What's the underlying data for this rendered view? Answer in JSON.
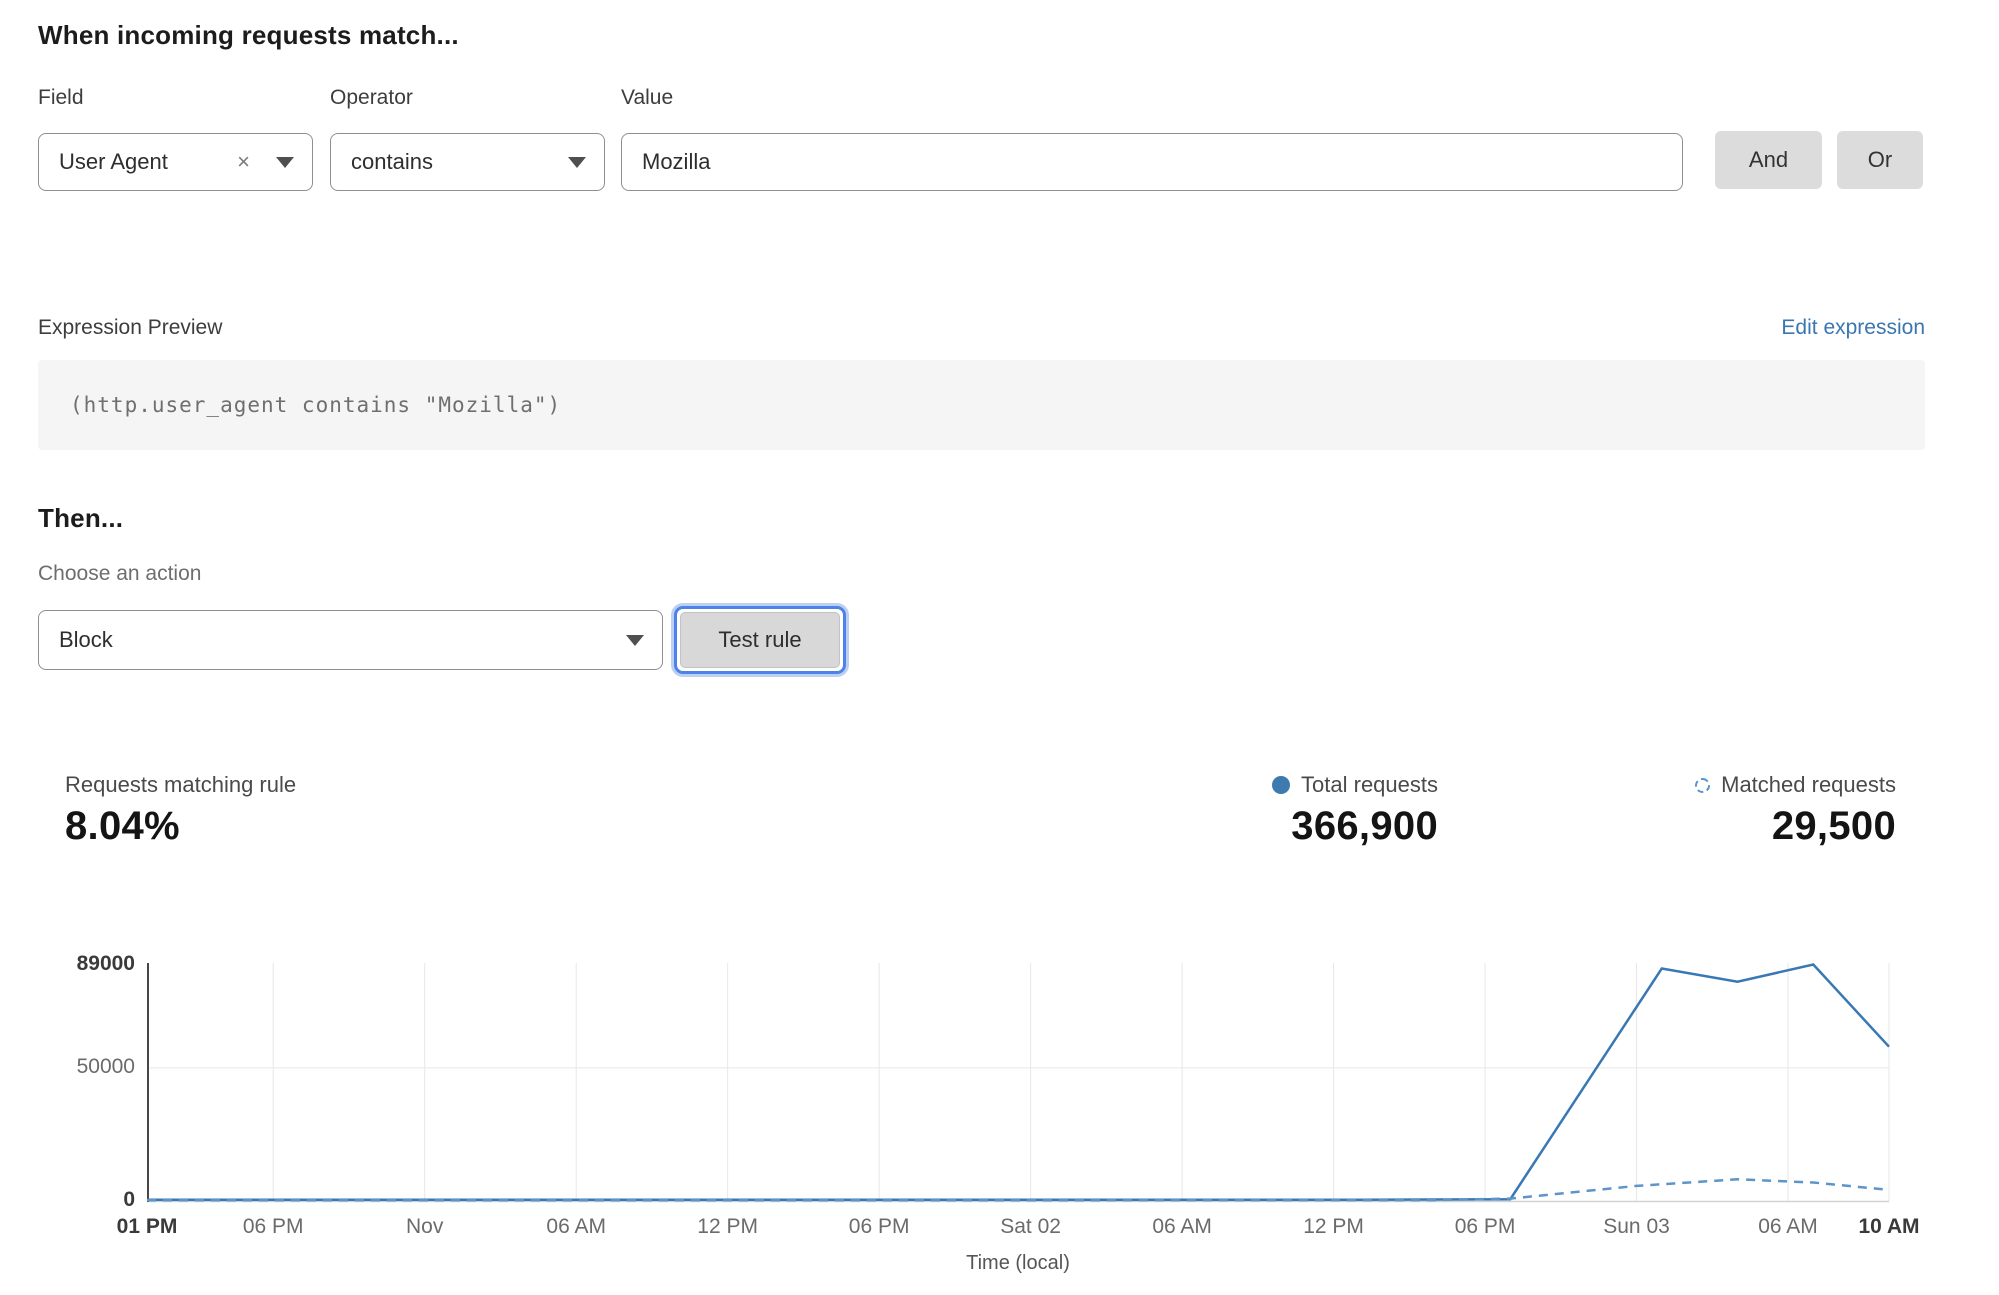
{
  "match_section": {
    "heading": "When incoming requests match...",
    "field": {
      "label": "Field",
      "value": "User Agent",
      "clear_icon": "×"
    },
    "operator": {
      "label": "Operator",
      "value": "contains"
    },
    "value_field": {
      "label": "Value",
      "value": "Mozilla"
    },
    "and_button": "And",
    "or_button": "Or"
  },
  "expression": {
    "label": "Expression Preview",
    "edit_link": "Edit expression",
    "code": "(http.user_agent contains \"Mozilla\")"
  },
  "action_section": {
    "heading": "Then...",
    "choose_label": "Choose an action",
    "action_value": "Block",
    "test_button": "Test rule"
  },
  "stats": {
    "matching": {
      "label": "Requests matching rule",
      "value": "8.04%"
    },
    "total": {
      "label": "Total requests",
      "value": "366,900",
      "marker": "solid-dot"
    },
    "matched": {
      "label": "Matched requests",
      "value": "29,500",
      "marker": "dashed-circle"
    }
  },
  "colors": {
    "line_solid": "#3878b4",
    "line_dashed": "#5e94c8",
    "link_blue": "#3a76b0",
    "focus_ring": "#4d82e8",
    "grid": "#e7e7e7",
    "y_axis": "#474747",
    "x_axis": "#d2d2d2"
  },
  "chart_data": {
    "type": "line",
    "title": "",
    "xlabel": "Time (local)",
    "ylabel": "",
    "ylim": [
      0,
      89000
    ],
    "x_unit": "hours from first tick (Thu 01 PM)",
    "x_range_hours": 69,
    "grid": true,
    "y_ticks": [
      {
        "value": 89000,
        "label": "89000",
        "bold": true
      },
      {
        "value": 50000,
        "label": "50000",
        "bold": false
      },
      {
        "value": 0,
        "label": "0",
        "bold": true
      }
    ],
    "x_ticks": [
      {
        "h": 0,
        "label": "01 PM",
        "bold": true
      },
      {
        "h": 5,
        "label": "06 PM",
        "bold": false
      },
      {
        "h": 11,
        "label": "Nov",
        "bold": false
      },
      {
        "h": 17,
        "label": "06 AM",
        "bold": false
      },
      {
        "h": 23,
        "label": "12 PM",
        "bold": false
      },
      {
        "h": 29,
        "label": "06 PM",
        "bold": false
      },
      {
        "h": 35,
        "label": "Sat 02",
        "bold": false
      },
      {
        "h": 41,
        "label": "06 AM",
        "bold": false
      },
      {
        "h": 47,
        "label": "12 PM",
        "bold": false
      },
      {
        "h": 53,
        "label": "06 PM",
        "bold": false
      },
      {
        "h": 59,
        "label": "Sun 03",
        "bold": false
      },
      {
        "h": 65,
        "label": "06 AM",
        "bold": false
      },
      {
        "h": 69,
        "label": "10 AM",
        "bold": true
      }
    ],
    "series": [
      {
        "name": "Total requests",
        "style": "solid",
        "points": [
          [
            0,
            300
          ],
          [
            12,
            300
          ],
          [
            24,
            300
          ],
          [
            36,
            300
          ],
          [
            48,
            300
          ],
          [
            54,
            500
          ],
          [
            60,
            87500
          ],
          [
            63,
            82500
          ],
          [
            66,
            89000
          ],
          [
            69,
            58000
          ]
        ]
      },
      {
        "name": "Matched requests",
        "style": "dashed",
        "points": [
          [
            0,
            100
          ],
          [
            12,
            100
          ],
          [
            24,
            100
          ],
          [
            36,
            100
          ],
          [
            51,
            150
          ],
          [
            54,
            700
          ],
          [
            59,
            5500
          ],
          [
            63,
            8000
          ],
          [
            66,
            6800
          ],
          [
            69,
            4000
          ]
        ]
      }
    ],
    "legend_position": "top-right"
  }
}
